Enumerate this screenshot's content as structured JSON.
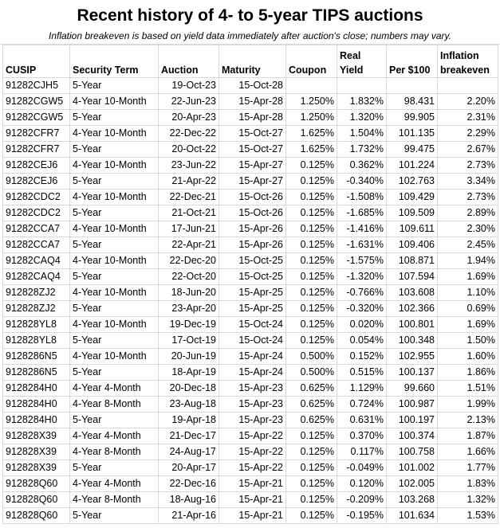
{
  "title": "Recent history of 4- to 5-year TIPS auctions",
  "subtitle": "Inflation breakeven is based on yield data immediately after auction's close; numbers may vary.",
  "table": {
    "columns": [
      "CUSIP",
      "Security Term",
      "Auction",
      "Maturity",
      "Coupon",
      "Real Yield",
      "Per $100",
      "Inflation breakeven"
    ],
    "rows": [
      [
        "91282CJH5",
        "5-Year",
        "19-Oct-23",
        "15-Oct-28",
        null,
        null,
        null,
        null
      ],
      [
        "91282CGW5",
        "4-Year 10-Month",
        "22-Jun-23",
        "15-Apr-28",
        "1.250%",
        "1.832%",
        "98.431",
        "2.20%"
      ],
      [
        "91282CGW5",
        "5-Year",
        "20-Apr-23",
        "15-Apr-28",
        "1.250%",
        "1.320%",
        "99.905",
        "2.31%"
      ],
      [
        "91282CFR7",
        "4-Year 10-Month",
        "22-Dec-22",
        "15-Oct-27",
        "1.625%",
        "1.504%",
        "101.135",
        "2.29%"
      ],
      [
        "91282CFR7",
        "5-Year",
        "20-Oct-22",
        "15-Oct-27",
        "1.625%",
        "1.732%",
        "99.475",
        "2.67%"
      ],
      [
        "91282CEJ6",
        "4-Year 10-Month",
        "23-Jun-22",
        "15-Apr-27",
        "0.125%",
        "0.362%",
        "101.224",
        "2.73%"
      ],
      [
        "91282CEJ6",
        "5-Year",
        "21-Apr-22",
        "15-Apr-27",
        "0.125%",
        "-0.340%",
        "102.763",
        "3.34%"
      ],
      [
        "91282CDC2",
        "4-Year 10-Month",
        "22-Dec-21",
        "15-Oct-26",
        "0.125%",
        "-1.508%",
        "109.429",
        "2.73%"
      ],
      [
        "91282CDC2",
        "5-Year",
        "21-Oct-21",
        "15-Oct-26",
        "0.125%",
        "-1.685%",
        "109.509",
        "2.89%"
      ],
      [
        "91282CCA7",
        "4-Year 10-Month",
        "17-Jun-21",
        "15-Apr-26",
        "0.125%",
        "-1.416%",
        "109.611",
        "2.30%"
      ],
      [
        "91282CCA7",
        "5-Year",
        "22-Apr-21",
        "15-Apr-26",
        "0.125%",
        "-1.631%",
        "109.406",
        "2.45%"
      ],
      [
        "91282CAQ4",
        "4-Year 10-Month",
        "22-Dec-20",
        "15-Oct-25",
        "0.125%",
        "-1.575%",
        "108.871",
        "1.94%"
      ],
      [
        "91282CAQ4",
        "5-Year",
        "22-Oct-20",
        "15-Oct-25",
        "0.125%",
        "-1.320%",
        "107.594",
        "1.69%"
      ],
      [
        "912828ZJ2",
        "4-Year 10-Month",
        "18-Jun-20",
        "15-Apr-25",
        "0.125%",
        "-0.766%",
        "103.608",
        "1.10%"
      ],
      [
        "912828ZJ2",
        "5-Year",
        "23-Apr-20",
        "15-Apr-25",
        "0.125%",
        "-0.320%",
        "102.366",
        "0.69%"
      ],
      [
        "912828YL8",
        "4-Year 10-Month",
        "19-Dec-19",
        "15-Oct-24",
        "0.125%",
        "0.020%",
        "100.801",
        "1.69%"
      ],
      [
        "912828YL8",
        "5-Year",
        "17-Oct-19",
        "15-Oct-24",
        "0.125%",
        "0.054%",
        "100.348",
        "1.50%"
      ],
      [
        "9128286N5",
        "4-Year 10-Month",
        "20-Jun-19",
        "15-Apr-24",
        "0.500%",
        "0.152%",
        "102.955",
        "1.60%"
      ],
      [
        "9128286N5",
        "5-Year",
        "18-Apr-19",
        "15-Apr-24",
        "0.500%",
        "0.515%",
        "100.137",
        "1.86%"
      ],
      [
        "9128284H0",
        "4-Year 4-Month",
        "20-Dec-18",
        "15-Apr-23",
        "0.625%",
        "1.129%",
        "99.660",
        "1.51%"
      ],
      [
        "9128284H0",
        "4-Year 8-Month",
        "23-Aug-18",
        "15-Apr-23",
        "0.625%",
        "0.724%",
        "100.987",
        "1.99%"
      ],
      [
        "9128284H0",
        "5-Year",
        "19-Apr-18",
        "15-Apr-23",
        "0.625%",
        "0.631%",
        "100.197",
        "2.13%"
      ],
      [
        "912828X39",
        "4-Year 4-Month",
        "21-Dec-17",
        "15-Apr-22",
        "0.125%",
        "0.370%",
        "100.374",
        "1.87%"
      ],
      [
        "912828X39",
        "4-Year 8-Month",
        "24-Aug-17",
        "15-Apr-22",
        "0.125%",
        "0.117%",
        "100.758",
        "1.66%"
      ],
      [
        "912828X39",
        "5-Year",
        "20-Apr-17",
        "15-Apr-22",
        "0.125%",
        "-0.049%",
        "101.002",
        "1.77%"
      ],
      [
        "912828Q60",
        "4-Year 4-Month",
        "22-Dec-16",
        "15-Apr-21",
        "0.125%",
        "0.120%",
        "102.005",
        "1.83%"
      ],
      [
        "912828Q60",
        "4-Year 8-Month",
        "18-Aug-16",
        "15-Apr-21",
        "0.125%",
        "-0.209%",
        "103.268",
        "1.32%"
      ],
      [
        "912828Q60",
        "5-Year",
        "21-Apr-16",
        "15-Apr-21",
        "0.125%",
        "-0.195%",
        "101.634",
        "1.53%"
      ]
    ]
  }
}
